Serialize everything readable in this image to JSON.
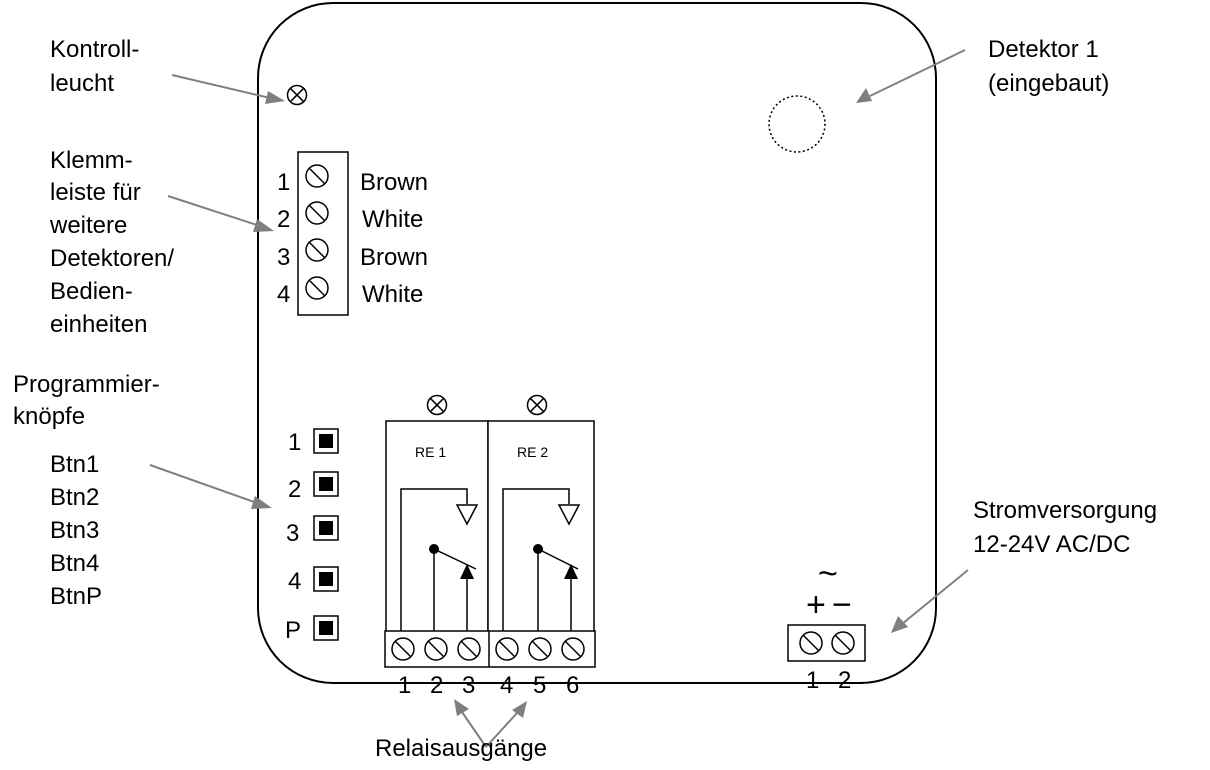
{
  "callouts": {
    "indicator_light": [
      "Kontroll-",
      "leucht"
    ],
    "detector": [
      "Detektor 1",
      "(eingebaut)"
    ],
    "terminal_strip": [
      "Klemm-",
      "leiste für",
      "weitere",
      "Detektoren/",
      "Bedien-",
      "einheiten"
    ],
    "programming_buttons": [
      "Programmier-",
      "knöpfe"
    ],
    "button_list": [
      "Btn1",
      "Btn2",
      "Btn3",
      "Btn4",
      "BtnP"
    ],
    "power_supply": [
      "Stromversorgung",
      "12-24V AC/DC"
    ],
    "relay_outputs": "Relaisausgänge"
  },
  "terminal_block": {
    "numbers": [
      "1",
      "2",
      "3",
      "4"
    ],
    "wires": [
      "Brown",
      "White",
      "Brown",
      "White"
    ]
  },
  "buttons": [
    "1",
    "2",
    "3",
    "4",
    "P"
  ],
  "relays": {
    "labels": [
      "RE 1",
      "RE 2"
    ],
    "terminals": [
      "1",
      "2",
      "3",
      "4",
      "5",
      "6"
    ]
  },
  "power": {
    "symbols": [
      "+",
      "~",
      "−"
    ],
    "terminals": [
      "1",
      "2"
    ]
  }
}
